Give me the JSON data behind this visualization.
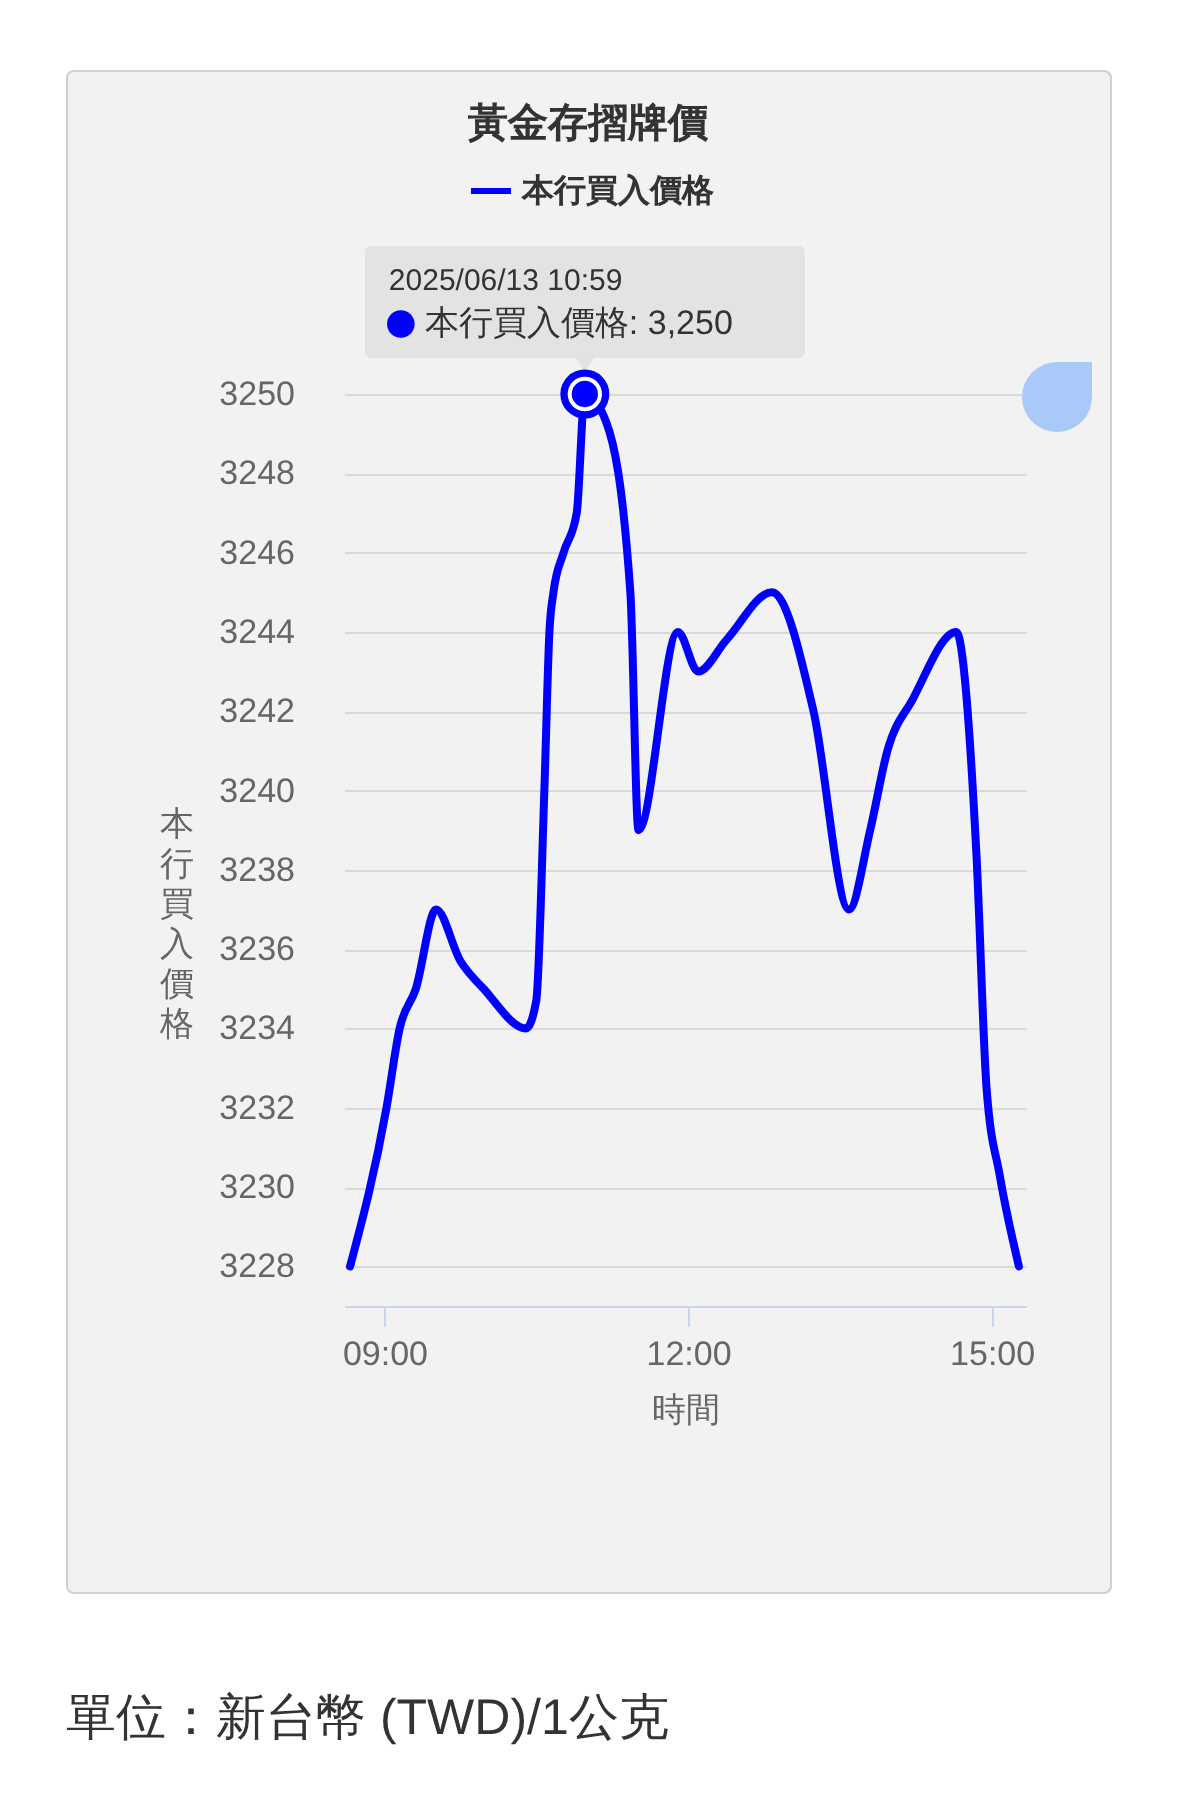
{
  "chart_data": {
    "type": "line",
    "title": "黃金存摺牌價",
    "xlabel": "時間",
    "ylabel": "本行買入價格",
    "annotations": [
      "2025/06/13 10:59",
      {
        "text": "本行買入價格: 3,250",
        "x": 10.98,
        "y": 3250
      },
      "單位：新台幣 (TWD)/1公克"
    ],
    "x": [
      8.66,
      9.02,
      9.15,
      9.31,
      9.51,
      9.75,
      9.98,
      10.4,
      10.5,
      10.58,
      10.63,
      10.67,
      10.77,
      10.9,
      10.98,
      11.19,
      11.43,
      11.51,
      11.9,
      12.1,
      12.38,
      12.83,
      13.24,
      13.59,
      13.8,
      13.97,
      14.22,
      14.65,
      14.85,
      14.95,
      15.08,
      15.27
    ],
    "series": [
      {
        "name": "本行買入價格",
        "color": "#0000ff",
        "values": [
          3228,
          3232,
          3234,
          3235,
          3237,
          3235.7,
          3235,
          3234,
          3234.7,
          3240,
          3244,
          3245,
          3246,
          3247,
          3250,
          3249.3,
          3245,
          3239,
          3244,
          3243,
          3243.8,
          3245,
          3242,
          3237,
          3239,
          3241,
          3242.3,
          3244,
          3238.4,
          3232.5,
          3230.3,
          3228
        ]
      }
    ],
    "xlim": [
      8.6,
      15.34
    ],
    "ylim": [
      3227,
      3250
    ],
    "xticks": [
      {
        "value": 9,
        "label": "09:00"
      },
      {
        "value": 12,
        "label": "12:00"
      },
      {
        "value": 15,
        "label": "15:00"
      }
    ],
    "yticks": [
      3228,
      3230,
      3232,
      3234,
      3236,
      3238,
      3240,
      3242,
      3244,
      3246,
      3248,
      3250
    ],
    "grid": "y",
    "legend": "top",
    "line_style": "solid"
  }
}
